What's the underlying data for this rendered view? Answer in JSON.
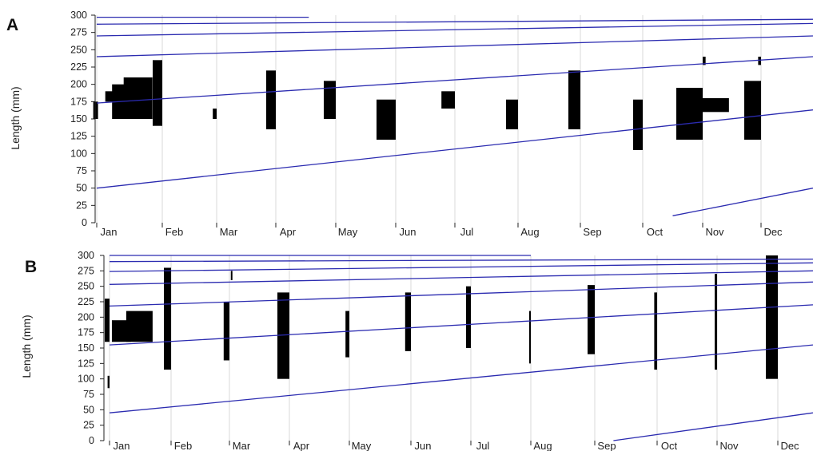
{
  "chart_data": [
    {
      "panel_label": "A",
      "type": "bar",
      "title": "",
      "xlabel": "",
      "ylabel": "Length (mm)",
      "ylim": [
        0,
        300
      ],
      "y_ticks": [
        0,
        25,
        50,
        75,
        100,
        125,
        150,
        175,
        200,
        225,
        250,
        275,
        300
      ],
      "months": [
        "Jan",
        "Feb",
        "Mar",
        "Apr",
        "May",
        "Jun",
        "Jul",
        "Aug",
        "Sep",
        "Oct",
        "Nov",
        "Dec"
      ],
      "grid": true,
      "histogram_bars": [
        {
          "t": 0.02,
          "len_low": 150,
          "len_high": 175,
          "freq": 0.1
        },
        {
          "t": 0.35,
          "len_low": 175,
          "len_high": 190,
          "freq": 0.3
        },
        {
          "t": 0.6,
          "len_low": 150,
          "len_high": 200,
          "freq": 0.5
        },
        {
          "t": 0.85,
          "len_low": 150,
          "len_high": 210,
          "freq": 0.6
        },
        {
          "t": 1.0,
          "len_low": 140,
          "len_high": 235,
          "freq": 0.2
        },
        {
          "t": 2.0,
          "len_low": 150,
          "len_high": 165,
          "freq": 0.08
        },
        {
          "t": 3.0,
          "len_low": 135,
          "len_high": 220,
          "freq": 0.2
        },
        {
          "t": 4.0,
          "len_low": 150,
          "len_high": 205,
          "freq": 0.25
        },
        {
          "t": 5.0,
          "len_low": 120,
          "len_high": 178,
          "freq": 0.4
        },
        {
          "t": 6.0,
          "len_low": 165,
          "len_high": 190,
          "freq": 0.28
        },
        {
          "t": 7.0,
          "len_low": 135,
          "len_high": 178,
          "freq": 0.25
        },
        {
          "t": 8.0,
          "len_low": 135,
          "len_high": 220,
          "freq": 0.25
        },
        {
          "t": 9.0,
          "len_low": 105,
          "len_high": 178,
          "freq": 0.2
        },
        {
          "t": 10.0,
          "len_low": 120,
          "len_high": 195,
          "freq": 0.55
        },
        {
          "t": 10.05,
          "len_low": 228,
          "len_high": 240,
          "freq": 0.06
        },
        {
          "t": 10.45,
          "len_low": 160,
          "len_high": 180,
          "freq": 0.6
        },
        {
          "t": 11.0,
          "len_low": 120,
          "len_high": 205,
          "freq": 0.35
        },
        {
          "t": 11.0,
          "len_low": 228,
          "len_high": 240,
          "freq": 0.06
        }
      ],
      "growth_curves": [
        {
          "x": [
            0,
            12.35
          ],
          "y": [
            50,
            163
          ]
        },
        {
          "x": [
            0,
            12.35
          ],
          "y": [
            173,
            240
          ]
        },
        {
          "x": [
            0,
            12.35
          ],
          "y": [
            240,
            270
          ]
        },
        {
          "x": [
            0,
            12.35
          ],
          "y": [
            270,
            288
          ]
        },
        {
          "x": [
            0,
            12.35
          ],
          "y": [
            287,
            294
          ]
        },
        {
          "x": [
            0,
            3.55
          ],
          "y": [
            297,
            297
          ]
        },
        {
          "x": [
            9.5,
            12.35
          ],
          "y": [
            10,
            50
          ]
        }
      ]
    },
    {
      "panel_label": "B",
      "type": "bar",
      "title": "",
      "xlabel": "",
      "ylabel": "Length (mm)",
      "ylim": [
        0,
        300
      ],
      "y_ticks": [
        0,
        25,
        50,
        75,
        100,
        125,
        150,
        175,
        200,
        225,
        250,
        275,
        300
      ],
      "months": [
        "Jan",
        "Feb",
        "Mar",
        "Apr",
        "May",
        "Jun",
        "Jul",
        "Aug",
        "Sep",
        "Oct",
        "Nov",
        "Dec"
      ],
      "grid": true,
      "histogram_bars": [
        {
          "t": 0.0,
          "len_low": 85,
          "len_high": 105,
          "freq": 0.04
        },
        {
          "t": 0.0,
          "len_low": 160,
          "len_high": 230,
          "freq": 0.1
        },
        {
          "t": 0.35,
          "len_low": 160,
          "len_high": 195,
          "freq": 0.4
        },
        {
          "t": 0.7,
          "len_low": 160,
          "len_high": 210,
          "freq": 0.55
        },
        {
          "t": 1.0,
          "len_low": 115,
          "len_high": 280,
          "freq": 0.15
        },
        {
          "t": 2.0,
          "len_low": 130,
          "len_high": 225,
          "freq": 0.12
        },
        {
          "t": 2.05,
          "len_low": 260,
          "len_high": 275,
          "freq": 0.03
        },
        {
          "t": 3.0,
          "len_low": 100,
          "len_high": 240,
          "freq": 0.25
        },
        {
          "t": 4.0,
          "len_low": 135,
          "len_high": 210,
          "freq": 0.08
        },
        {
          "t": 5.0,
          "len_low": 145,
          "len_high": 240,
          "freq": 0.12
        },
        {
          "t": 6.0,
          "len_low": 150,
          "len_high": 250,
          "freq": 0.1
        },
        {
          "t": 7.0,
          "len_low": 125,
          "len_high": 210,
          "freq": 0.03
        },
        {
          "t": 8.0,
          "len_low": 140,
          "len_high": 252,
          "freq": 0.15
        },
        {
          "t": 9.0,
          "len_low": 115,
          "len_high": 240,
          "freq": 0.06
        },
        {
          "t": 10.0,
          "len_low": 115,
          "len_high": 270,
          "freq": 0.05
        },
        {
          "t": 11.0,
          "len_low": 100,
          "len_high": 300,
          "freq": 0.25
        }
      ],
      "growth_curves": [
        {
          "x": [
            0,
            12.35
          ],
          "y": [
            45,
            155
          ]
        },
        {
          "x": [
            0,
            12.35
          ],
          "y": [
            155,
            220
          ]
        },
        {
          "x": [
            0,
            12.35
          ],
          "y": [
            218,
            257
          ]
        },
        {
          "x": [
            0,
            12.35
          ],
          "y": [
            253,
            275
          ]
        },
        {
          "x": [
            0,
            12.35
          ],
          "y": [
            274,
            288
          ]
        },
        {
          "x": [
            0,
            12.35
          ],
          "y": [
            290,
            294
          ]
        },
        {
          "x": [
            0,
            7.0
          ],
          "y": [
            300,
            300
          ]
        },
        {
          "x": [
            8.3,
            12.35
          ],
          "y": [
            0,
            45
          ]
        }
      ]
    }
  ]
}
